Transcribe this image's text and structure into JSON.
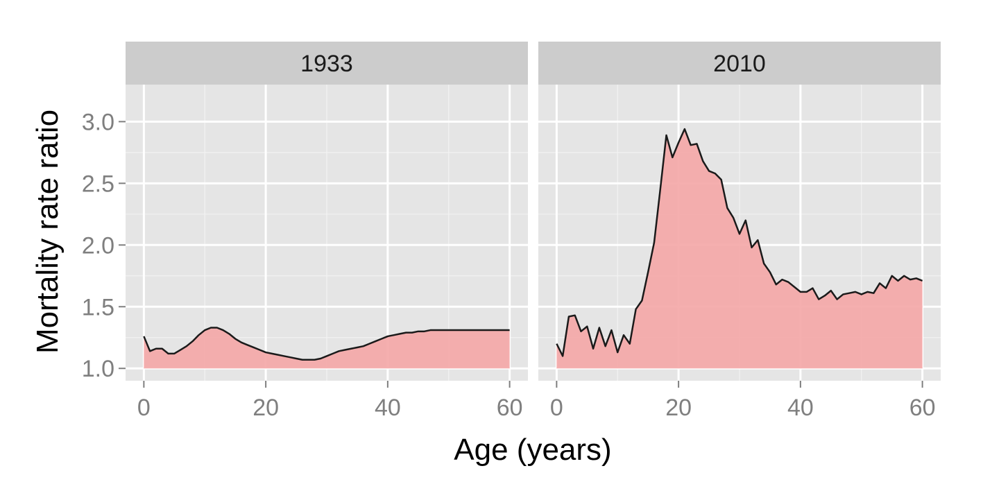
{
  "chart_data": {
    "type": "area",
    "xlabel": "Age (years)",
    "ylabel": "Mortality rate ratio",
    "xlim": [
      -3,
      63
    ],
    "ylim": [
      0.9,
      3.3
    ],
    "x_ticks": [
      0,
      20,
      40,
      60
    ],
    "y_ticks": [
      1.0,
      1.5,
      2.0,
      2.5,
      3.0
    ],
    "x_tick_labels": [
      "0",
      "20",
      "40",
      "60"
    ],
    "y_tick_labels": [
      "1.0",
      "1.5",
      "2.0",
      "2.5",
      "3.0"
    ],
    "grid": true,
    "colors": {
      "fill": "#f4a6a6",
      "line": "#1a1a1a",
      "panel_bg": "#e5e5e5",
      "strip_bg": "#cccccc",
      "grid_major": "#ffffff",
      "grid_minor": "#f2f2f2",
      "axis_text": "#7f7f7f"
    },
    "panels": [
      {
        "label": "1933",
        "x": [
          0,
          1,
          2,
          3,
          4,
          5,
          6,
          7,
          8,
          9,
          10,
          11,
          12,
          13,
          14,
          15,
          16,
          17,
          18,
          19,
          20,
          21,
          22,
          23,
          24,
          25,
          26,
          27,
          28,
          29,
          30,
          31,
          32,
          33,
          34,
          35,
          36,
          37,
          38,
          39,
          40,
          41,
          42,
          43,
          44,
          45,
          46,
          47,
          48,
          49,
          50,
          51,
          52,
          53,
          54,
          55,
          56,
          57,
          58,
          59,
          60
        ],
        "y": [
          1.26,
          1.14,
          1.16,
          1.16,
          1.12,
          1.12,
          1.15,
          1.18,
          1.22,
          1.27,
          1.31,
          1.33,
          1.33,
          1.31,
          1.28,
          1.24,
          1.21,
          1.19,
          1.17,
          1.15,
          1.13,
          1.12,
          1.11,
          1.1,
          1.09,
          1.08,
          1.07,
          1.07,
          1.07,
          1.08,
          1.1,
          1.12,
          1.14,
          1.15,
          1.16,
          1.17,
          1.18,
          1.2,
          1.22,
          1.24,
          1.26,
          1.27,
          1.28,
          1.29,
          1.29,
          1.3,
          1.3,
          1.31,
          1.31,
          1.31,
          1.31,
          1.31,
          1.31,
          1.31,
          1.31,
          1.31,
          1.31,
          1.31,
          1.31,
          1.31,
          1.31
        ]
      },
      {
        "label": "2010",
        "x": [
          0,
          1,
          2,
          3,
          4,
          5,
          6,
          7,
          8,
          9,
          10,
          11,
          12,
          13,
          14,
          15,
          16,
          17,
          18,
          19,
          20,
          21,
          22,
          23,
          24,
          25,
          26,
          27,
          28,
          29,
          30,
          31,
          32,
          33,
          34,
          35,
          36,
          37,
          38,
          39,
          40,
          41,
          42,
          43,
          44,
          45,
          46,
          47,
          48,
          49,
          50,
          51,
          52,
          53,
          54,
          55,
          56,
          57,
          58,
          59,
          60
        ],
        "y": [
          1.2,
          1.1,
          1.42,
          1.43,
          1.3,
          1.34,
          1.16,
          1.33,
          1.18,
          1.31,
          1.13,
          1.27,
          1.2,
          1.48,
          1.55,
          1.78,
          2.02,
          2.45,
          2.89,
          2.71,
          2.83,
          2.94,
          2.81,
          2.82,
          2.68,
          2.6,
          2.58,
          2.53,
          2.3,
          2.22,
          2.09,
          2.2,
          1.98,
          2.04,
          1.85,
          1.78,
          1.68,
          1.72,
          1.7,
          1.66,
          1.62,
          1.62,
          1.65,
          1.56,
          1.59,
          1.63,
          1.56,
          1.6,
          1.61,
          1.62,
          1.6,
          1.62,
          1.61,
          1.69,
          1.65,
          1.75,
          1.71,
          1.75,
          1.72,
          1.73,
          1.71
        ]
      }
    ]
  }
}
